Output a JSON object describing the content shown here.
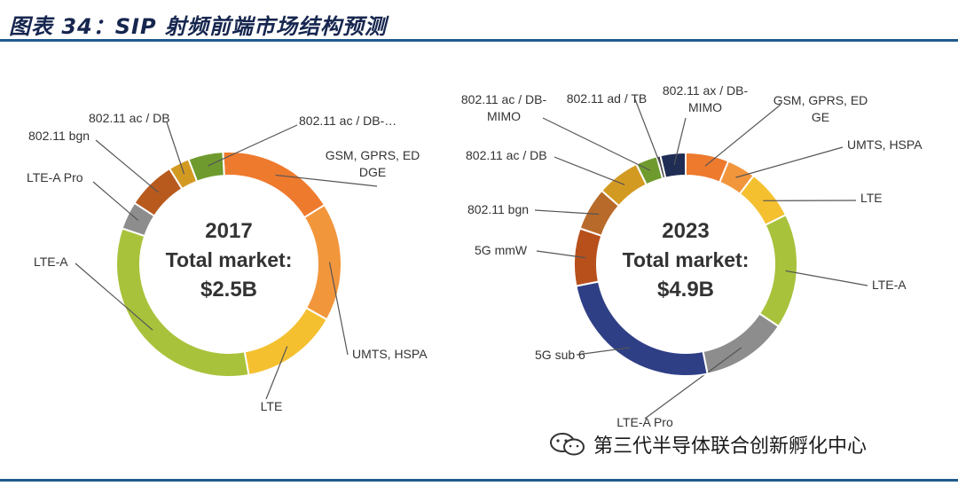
{
  "header": {
    "title": "图表 34：SIP 射频前端市场结构预测"
  },
  "watermark": {
    "icon": "wechat-icon",
    "text": "第三代半导体联合创新孵化中心"
  },
  "chart_data": [
    {
      "type": "pie",
      "donut": true,
      "center_lines": [
        "2017",
        "Total market:",
        "$2.5B"
      ],
      "slices": [
        {
          "label": "GSM, GPRS, ED\nDGE",
          "value": 0.17,
          "color": "#ee7a2e"
        },
        {
          "label": "UMTS, HSPA",
          "value": 0.17,
          "color": "#f2963c"
        },
        {
          "label": "LTE",
          "value": 0.14,
          "color": "#f5c030"
        },
        {
          "label": "LTE-A",
          "value": 0.33,
          "color": "#a9c23c"
        },
        {
          "label": "LTE-A Pro",
          "value": 0.04,
          "color": "#8d8d8d"
        },
        {
          "label": "802.11 bgn",
          "value": 0.07,
          "color": "#b85a1e"
        },
        {
          "label": "802.11 ac / DB",
          "value": 0.03,
          "color": "#d39a22"
        },
        {
          "label": "802.11 ac / DB-…",
          "value": 0.05,
          "color": "#6f9b2e"
        }
      ]
    },
    {
      "type": "pie",
      "donut": true,
      "center_lines": [
        "2023",
        "Total market:",
        "$4.9B"
      ],
      "slices": [
        {
          "label": "GSM, GPRS, ED\nGE",
          "value": 0.06,
          "color": "#ee7a2e"
        },
        {
          "label": "UMTS, HSPA",
          "value": 0.04,
          "color": "#f2963c"
        },
        {
          "label": "LTE",
          "value": 0.07,
          "color": "#f5c030"
        },
        {
          "label": "LTE-A",
          "value": 0.16,
          "color": "#a9c23c"
        },
        {
          "label": "LTE-A Pro",
          "value": 0.12,
          "color": "#8d8d8d"
        },
        {
          "label": "5G sub 6",
          "value": 0.24,
          "color": "#2f3f86"
        },
        {
          "label": "5G mmW",
          "value": 0.08,
          "color": "#b8501c"
        },
        {
          "label": "802.11 bgn",
          "value": 0.06,
          "color": "#b86a2a"
        },
        {
          "label": "802.11 ac / DB",
          "value": 0.06,
          "color": "#d39a22"
        },
        {
          "label": "802.11 ac / DB-\nMIMO",
          "value": 0.03,
          "color": "#6f9b2e"
        },
        {
          "label": "802.11 ad / TB",
          "value": 0.005,
          "color": "#3a3a3a"
        },
        {
          "label": "802.11 ax / DB-\nMIMO",
          "value": 0.035,
          "color": "#1f2d55"
        }
      ]
    }
  ]
}
